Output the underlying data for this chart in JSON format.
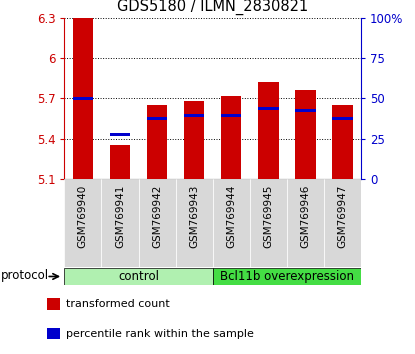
{
  "title": "GDS5180 / ILMN_2830821",
  "samples": [
    "GSM769940",
    "GSM769941",
    "GSM769942",
    "GSM769943",
    "GSM769944",
    "GSM769945",
    "GSM769946",
    "GSM769947"
  ],
  "red_values": [
    6.3,
    5.35,
    5.65,
    5.68,
    5.72,
    5.82,
    5.76,
    5.65
  ],
  "blue_values": [
    5.7,
    5.43,
    5.55,
    5.57,
    5.57,
    5.62,
    5.61,
    5.55
  ],
  "ymin": 5.1,
  "ymax": 6.3,
  "yticks_red": [
    5.1,
    5.4,
    5.7,
    6.0,
    6.3
  ],
  "yticks_blue": [
    0,
    25,
    50,
    75,
    100
  ],
  "ytick_labels_red": [
    "5.1",
    "5.4",
    "5.7",
    "6",
    "6.3"
  ],
  "ytick_labels_blue": [
    "0",
    "25",
    "50",
    "75",
    "100%"
  ],
  "bar_color": "#cc0000",
  "dot_color": "#0000cc",
  "bg_color": "#ffffff",
  "tick_color_left": "#cc0000",
  "tick_color_right": "#0000cc",
  "bar_width": 0.55,
  "legend_items": [
    {
      "color": "#cc0000",
      "label": "transformed count"
    },
    {
      "color": "#0000cc",
      "label": "percentile rank within the sample"
    }
  ],
  "protocol_label": "protocol",
  "group_label_control": "control",
  "group_label_bcl": "Bcl11b overexpression",
  "color_control": "#b0f0b0",
  "color_bcl": "#44dd44"
}
